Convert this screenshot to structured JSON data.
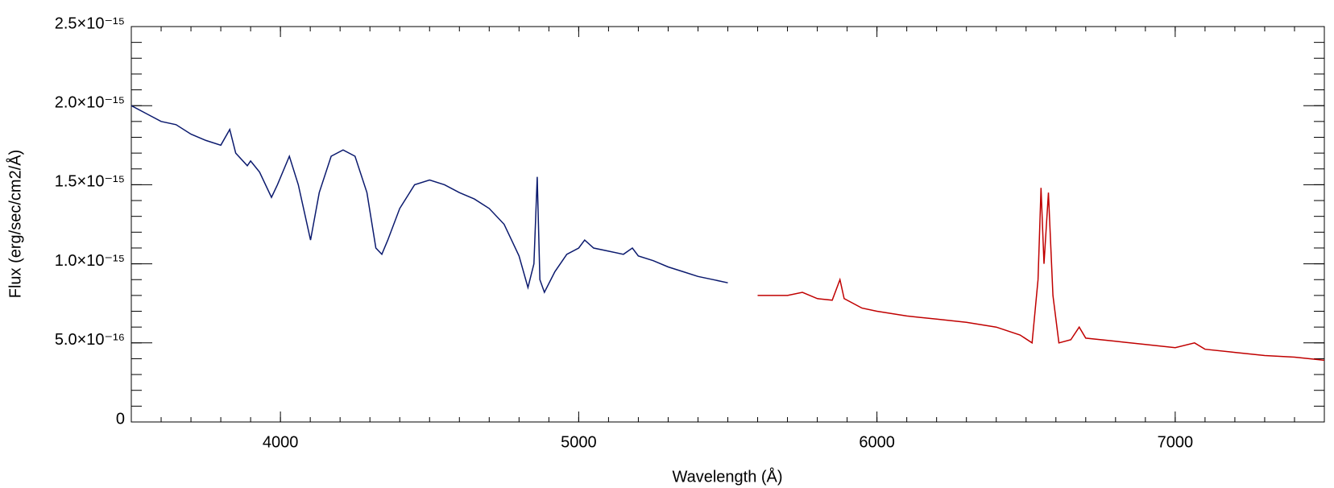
{
  "chart_data": {
    "type": "line",
    "xlabel": "Wavelength (Å)",
    "ylabel": "Flux (erg/sec/cm2/Å)",
    "xlim": [
      3500,
      7500
    ],
    "xticks": [
      4000,
      5000,
      6000,
      7000
    ],
    "ylim": [
      0,
      2.5e-15
    ],
    "yticks": [
      0,
      {
        "value": 5e-16,
        "label": "5.0×10⁻¹⁶"
      },
      {
        "value": 1e-15,
        "label": "1.0×10⁻¹⁵"
      },
      {
        "value": 1.5e-15,
        "label": "1.5×10⁻¹⁵"
      },
      {
        "value": 2e-15,
        "label": "2.0×10⁻¹⁵"
      },
      {
        "value": 2.5e-15,
        "label": "2.5×10⁻¹⁵"
      }
    ],
    "series": [
      {
        "color": "#0b1a6e",
        "x": [
          3500,
          3550,
          3600,
          3650,
          3700,
          3750,
          3800,
          3830,
          3850,
          3889,
          3900,
          3930,
          3970,
          3990,
          4030,
          4060,
          4101,
          4130,
          4170,
          4210,
          4250,
          4290,
          4320,
          4340,
          4360,
          4400,
          4450,
          4500,
          4550,
          4600,
          4650,
          4700,
          4750,
          4800,
          4830,
          4850,
          4861,
          4870,
          4885,
          4920,
          4960,
          5000,
          5020,
          5050,
          5100,
          5150,
          5180,
          5200,
          5250,
          5300,
          5350,
          5400,
          5450,
          5500
        ],
        "values": [
          2e-15,
          1.95e-15,
          1.9e-15,
          1.88e-15,
          1.82e-15,
          1.78e-15,
          1.75e-15,
          1.85e-15,
          1.7e-15,
          1.62e-15,
          1.65e-15,
          1.58e-15,
          1.42e-15,
          1.5e-15,
          1.68e-15,
          1.5e-15,
          1.15e-15,
          1.45e-15,
          1.68e-15,
          1.72e-15,
          1.68e-15,
          1.45e-15,
          1.1e-15,
          1.06e-15,
          1.15e-15,
          1.35e-15,
          1.5e-15,
          1.53e-15,
          1.5e-15,
          1.45e-15,
          1.41e-15,
          1.35e-15,
          1.25e-15,
          1.05e-15,
          8.5e-16,
          1e-15,
          1.55e-15,
          9e-16,
          8.2e-16,
          9.5e-16,
          1.06e-15,
          1.1e-15,
          1.15e-15,
          1.1e-15,
          1.08e-15,
          1.06e-15,
          1.1e-15,
          1.05e-15,
          1.02e-15,
          9.8e-16,
          9.5e-16,
          9.2e-16,
          9e-16,
          8.8e-16
        ]
      },
      {
        "color": "#c00000",
        "x": [
          5600,
          5650,
          5700,
          5750,
          5800,
          5850,
          5876,
          5890,
          5950,
          6000,
          6100,
          6200,
          6300,
          6400,
          6480,
          6520,
          6540,
          6550,
          6560,
          6575,
          6590,
          6610,
          6650,
          6678,
          6700,
          6800,
          6900,
          7000,
          7065,
          7100,
          7200,
          7300,
          7400,
          7500
        ],
        "values": [
          8e-16,
          8e-16,
          8e-16,
          8.2e-16,
          7.8e-16,
          7.7e-16,
          9e-16,
          7.8e-16,
          7.2e-16,
          7e-16,
          6.7e-16,
          6.5e-16,
          6.3e-16,
          6e-16,
          5.5e-16,
          5e-16,
          9e-16,
          1.48e-15,
          1e-15,
          1.45e-15,
          8e-16,
          5e-16,
          5.2e-16,
          6e-16,
          5.3e-16,
          5.1e-16,
          4.9e-16,
          4.7e-16,
          5e-16,
          4.6e-16,
          4.4e-16,
          4.2e-16,
          4.1e-16,
          3.9e-16
        ]
      }
    ]
  }
}
